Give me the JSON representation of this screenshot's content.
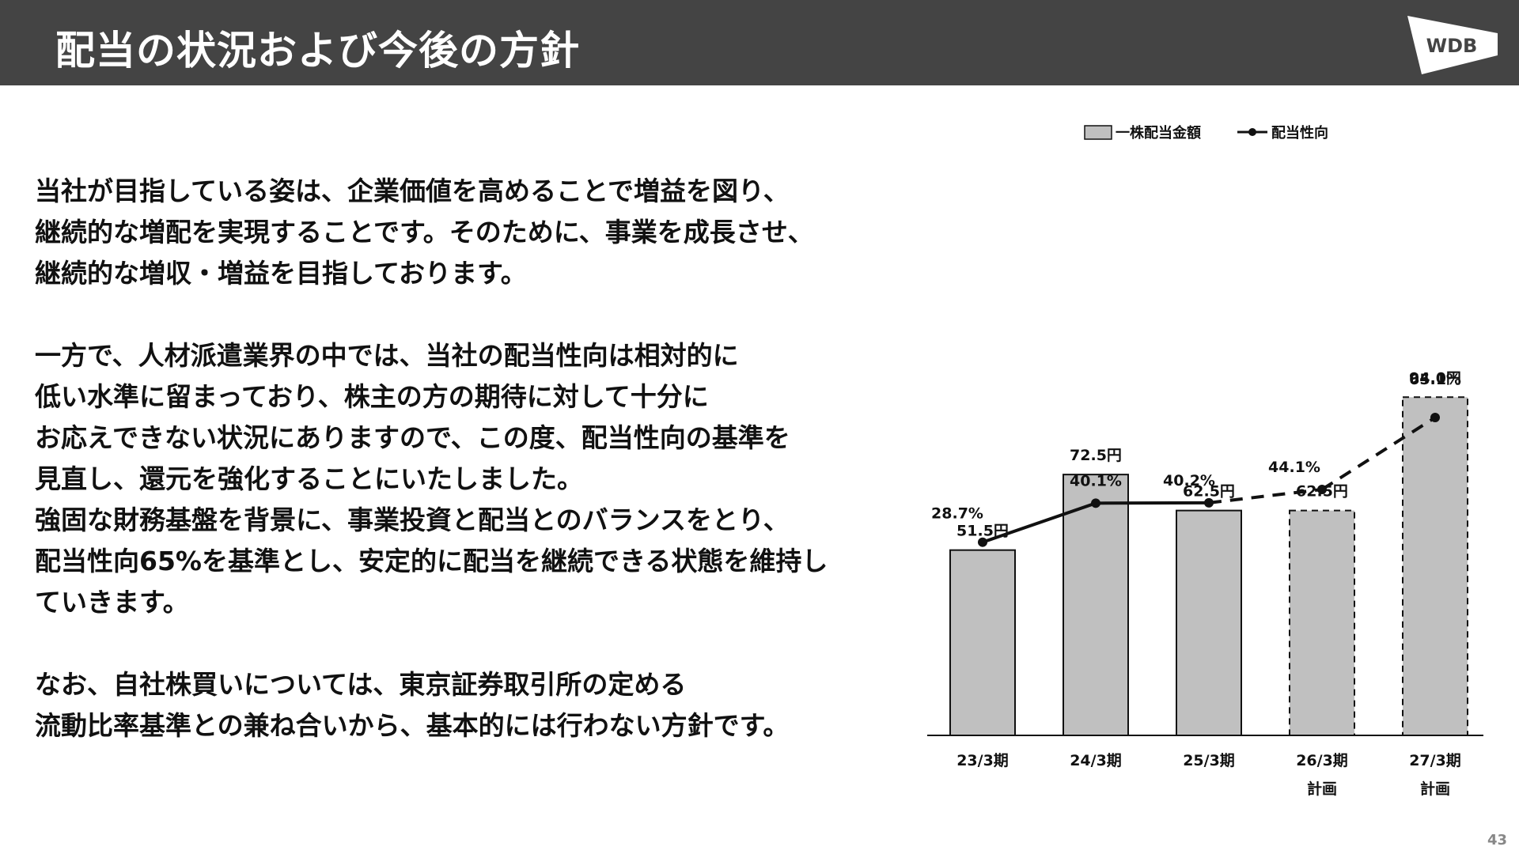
{
  "header": {
    "title": "配当の状況および今後の方針",
    "logo_text": "WDB"
  },
  "body": {
    "paragraphs": [
      [
        "当社が目指している姿は、企業価値を高めることで増益を図り、",
        "継続的な増配を実現することです。そのために、事業を成長させ、",
        "継続的な増収・増益を目指しております。"
      ],
      [
        "一方で、人材派遣業界の中では、当社の配当性向は相対的に",
        "低い水準に留まっており、株主の方の期待に対して十分に",
        "お応えできない状況にありますので、この度、配当性向の基準を",
        "見直し、還元を強化することにいたしました。",
        "強固な財務基盤を背景に、事業投資と配当とのバランスをとり、",
        "配当性向65%を基準とし、安定的に配当を継続できる状態を維持し",
        "ていきます。"
      ],
      [
        "なお、自社株買いについては、東京証券取引所の定める",
        "流動比率基準との兼ね合いから、基本的には行わない方針です。"
      ]
    ]
  },
  "chart_data": {
    "type": "bar",
    "categories": [
      "23/3期",
      "24/3期",
      "25/3期",
      "26/3期\n計画",
      "27/3期\n計画"
    ],
    "series": [
      {
        "name": "一株配当金額",
        "type": "bar",
        "values": [
          51.5,
          72.5,
          62.5,
          62.5,
          94.0
        ],
        "labels": [
          "51.5円",
          "72.5円",
          "62.5円",
          "62.5円",
          "94.0円"
        ],
        "planned": [
          false,
          false,
          false,
          true,
          true
        ],
        "color": "#c0c0c0"
      },
      {
        "name": "配当性向",
        "type": "line",
        "values": [
          28.7,
          40.1,
          40.2,
          44.1,
          65.1
        ],
        "labels": [
          "28.7%",
          "40.1%",
          "40.2%",
          "44.1%",
          "65.1%"
        ],
        "planned": [
          false,
          false,
          false,
          true,
          true
        ],
        "color": "#111111"
      }
    ],
    "bar_ylim": [
      0,
      100
    ],
    "line_ylim": [
      0,
      80
    ],
    "legend_position": "top",
    "grid": false
  },
  "page_number": "43"
}
